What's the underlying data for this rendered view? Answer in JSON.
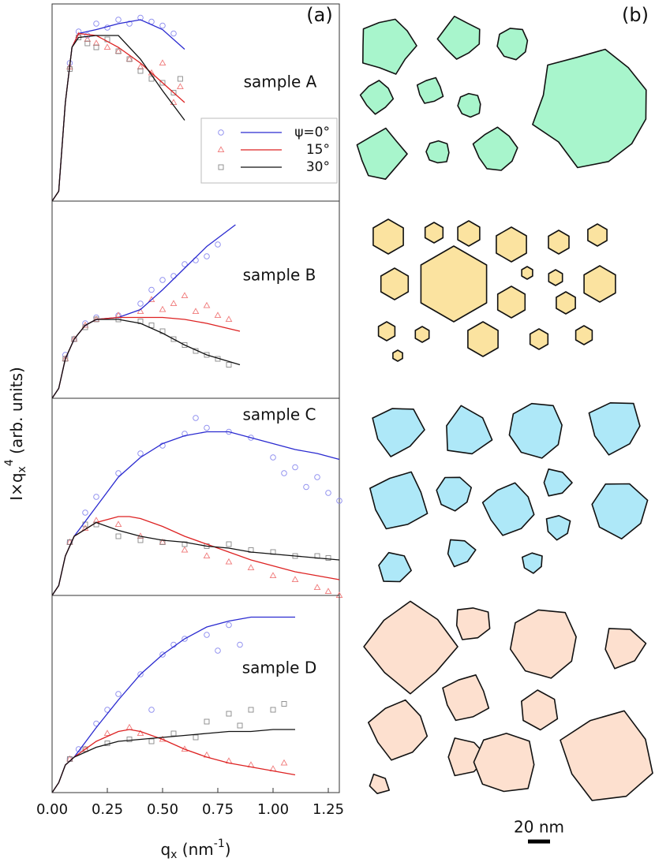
{
  "figure": {
    "panel_a": "(a)",
    "panel_b": "(b)",
    "ylabel": [
      "I×q",
      "x",
      "4",
      " (arb. units)"
    ],
    "xlabel": [
      "q",
      "x",
      " (nm",
      "-1",
      ")"
    ],
    "scalebar": "20 nm"
  },
  "chart_data": [
    {
      "type": "scatter",
      "label": "sample A",
      "xlim": [
        0,
        1.3
      ],
      "ylim": [
        0,
        1
      ],
      "legend": true,
      "series": [
        {
          "name": "ψ=0°",
          "color": "#2a2ad0",
          "marker": "circle",
          "x": [
            0.08,
            0.12,
            0.16,
            0.2,
            0.25,
            0.3,
            0.35,
            0.4,
            0.45,
            0.5,
            0.55
          ],
          "values": [
            0.7,
            0.86,
            0.84,
            0.9,
            0.88,
            0.92,
            0.9,
            0.93,
            0.91,
            0.89,
            0.85
          ],
          "fit_x": [
            0,
            0.03,
            0.06,
            0.09,
            0.12,
            0.2,
            0.3,
            0.4,
            0.5,
            0.6
          ],
          "fit_values": [
            0,
            0.05,
            0.5,
            0.78,
            0.85,
            0.87,
            0.9,
            0.92,
            0.87,
            0.77
          ]
        },
        {
          "name": "15°",
          "color": "#dd2222",
          "marker": "triangle",
          "x": [
            0.08,
            0.12,
            0.16,
            0.2,
            0.25,
            0.3,
            0.35,
            0.4,
            0.45,
            0.5,
            0.55,
            0.58
          ],
          "values": [
            0.68,
            0.84,
            0.82,
            0.8,
            0.78,
            0.76,
            0.72,
            0.68,
            0.65,
            0.7,
            0.5,
            0.58
          ],
          "fit_x": [
            0,
            0.03,
            0.06,
            0.09,
            0.12,
            0.2,
            0.3,
            0.4,
            0.5,
            0.6
          ],
          "fit_values": [
            0,
            0.05,
            0.5,
            0.78,
            0.85,
            0.84,
            0.78,
            0.7,
            0.6,
            0.5
          ]
        },
        {
          "name": "30°",
          "color": "#111111",
          "marker": "square",
          "x": [
            0.08,
            0.12,
            0.16,
            0.2,
            0.25,
            0.3,
            0.35,
            0.4,
            0.45,
            0.5,
            0.55,
            0.58
          ],
          "values": [
            0.67,
            0.83,
            0.8,
            0.78,
            0.82,
            0.76,
            0.72,
            0.66,
            0.62,
            0.6,
            0.55,
            0.62
          ],
          "fit_x": [
            0,
            0.03,
            0.06,
            0.09,
            0.12,
            0.2,
            0.3,
            0.4,
            0.5,
            0.6
          ],
          "fit_values": [
            0,
            0.05,
            0.5,
            0.78,
            0.83,
            0.84,
            0.84,
            0.72,
            0.56,
            0.41
          ]
        }
      ]
    },
    {
      "type": "scatter",
      "label": "sample B",
      "xlim": [
        0,
        1.3
      ],
      "ylim": [
        0,
        1
      ],
      "series": [
        {
          "color": "#2a2ad0",
          "marker": "circle",
          "x": [
            0.06,
            0.1,
            0.15,
            0.2,
            0.3,
            0.4,
            0.45,
            0.5,
            0.55,
            0.6,
            0.65,
            0.7,
            0.75
          ],
          "values": [
            0.22,
            0.3,
            0.38,
            0.41,
            0.42,
            0.48,
            0.55,
            0.6,
            0.62,
            0.68,
            0.7,
            0.72,
            0.78
          ],
          "fit_x": [
            0,
            0.03,
            0.06,
            0.1,
            0.15,
            0.2,
            0.3,
            0.4,
            0.5,
            0.6,
            0.7,
            0.83
          ],
          "fit_values": [
            0,
            0.05,
            0.2,
            0.3,
            0.37,
            0.4,
            0.41,
            0.45,
            0.55,
            0.66,
            0.77,
            0.88
          ]
        },
        {
          "color": "#dd2222",
          "marker": "triangle",
          "x": [
            0.06,
            0.1,
            0.15,
            0.2,
            0.3,
            0.4,
            0.45,
            0.5,
            0.55,
            0.6,
            0.65,
            0.7,
            0.75,
            0.8
          ],
          "values": [
            0.2,
            0.3,
            0.37,
            0.4,
            0.42,
            0.44,
            0.5,
            0.45,
            0.48,
            0.52,
            0.44,
            0.47,
            0.42,
            0.4
          ],
          "fit_x": [
            0,
            0.03,
            0.06,
            0.1,
            0.15,
            0.2,
            0.3,
            0.4,
            0.5,
            0.6,
            0.7,
            0.85
          ],
          "fit_values": [
            0,
            0.05,
            0.2,
            0.3,
            0.37,
            0.4,
            0.41,
            0.41,
            0.41,
            0.4,
            0.38,
            0.34
          ]
        },
        {
          "color": "#111111",
          "marker": "square",
          "x": [
            0.06,
            0.1,
            0.15,
            0.2,
            0.3,
            0.4,
            0.45,
            0.5,
            0.55,
            0.6,
            0.65,
            0.7,
            0.75,
            0.8
          ],
          "values": [
            0.2,
            0.3,
            0.36,
            0.4,
            0.4,
            0.39,
            0.37,
            0.34,
            0.3,
            0.27,
            0.24,
            0.22,
            0.2,
            0.17
          ],
          "fit_x": [
            0,
            0.03,
            0.06,
            0.1,
            0.15,
            0.2,
            0.3,
            0.4,
            0.5,
            0.6,
            0.7,
            0.85
          ],
          "fit_values": [
            0,
            0.05,
            0.2,
            0.3,
            0.37,
            0.4,
            0.4,
            0.38,
            0.33,
            0.27,
            0.22,
            0.17
          ]
        }
      ]
    },
    {
      "type": "scatter",
      "label": "sample C",
      "xlim": [
        0,
        1.3
      ],
      "ylim": [
        0,
        1
      ],
      "series": [
        {
          "color": "#2a2ad0",
          "marker": "circle",
          "x": [
            0.08,
            0.15,
            0.2,
            0.3,
            0.4,
            0.5,
            0.6,
            0.65,
            0.7,
            0.8,
            0.9,
            1.0,
            1.05,
            1.1,
            1.15,
            1.2,
            1.25,
            1.3
          ],
          "values": [
            0.27,
            0.42,
            0.5,
            0.62,
            0.72,
            0.76,
            0.82,
            0.9,
            0.85,
            0.83,
            0.8,
            0.7,
            0.62,
            0.65,
            0.55,
            0.6,
            0.52,
            0.48
          ],
          "fit_x": [
            0,
            0.03,
            0.06,
            0.1,
            0.2,
            0.3,
            0.4,
            0.5,
            0.6,
            0.7,
            0.8,
            0.9,
            1.0,
            1.1,
            1.2,
            1.3
          ],
          "fit_values": [
            0,
            0.05,
            0.2,
            0.3,
            0.45,
            0.6,
            0.7,
            0.77,
            0.81,
            0.83,
            0.83,
            0.8,
            0.77,
            0.74,
            0.72,
            0.69
          ]
        },
        {
          "color": "#dd2222",
          "marker": "triangle",
          "x": [
            0.08,
            0.15,
            0.2,
            0.3,
            0.4,
            0.5,
            0.6,
            0.7,
            0.8,
            0.9,
            1.0,
            1.1,
            1.2,
            1.25,
            1.3
          ],
          "values": [
            0.27,
            0.34,
            0.38,
            0.36,
            0.3,
            0.27,
            0.23,
            0.2,
            0.17,
            0.14,
            0.1,
            0.08,
            0.04,
            0.02,
            0.0
          ],
          "fit_x": [
            0,
            0.03,
            0.06,
            0.1,
            0.2,
            0.3,
            0.35,
            0.4,
            0.5,
            0.6,
            0.7,
            0.8,
            0.9,
            1.0,
            1.1,
            1.2,
            1.3
          ],
          "fit_values": [
            0,
            0.05,
            0.2,
            0.3,
            0.37,
            0.4,
            0.4,
            0.39,
            0.35,
            0.3,
            0.26,
            0.22,
            0.18,
            0.15,
            0.12,
            0.1,
            0.08
          ]
        },
        {
          "color": "#111111",
          "marker": "square",
          "x": [
            0.08,
            0.15,
            0.2,
            0.3,
            0.4,
            0.5,
            0.6,
            0.7,
            0.8,
            0.9,
            1.0,
            1.1,
            1.2,
            1.25
          ],
          "values": [
            0.27,
            0.36,
            0.36,
            0.3,
            0.28,
            0.27,
            0.26,
            0.25,
            0.26,
            0.23,
            0.22,
            0.2,
            0.2,
            0.19
          ],
          "fit_x": [
            0,
            0.03,
            0.06,
            0.1,
            0.2,
            0.3,
            0.4,
            0.5,
            0.6,
            0.7,
            0.8,
            0.9,
            1.0,
            1.1,
            1.2,
            1.3
          ],
          "fit_values": [
            0,
            0.05,
            0.2,
            0.3,
            0.37,
            0.33,
            0.3,
            0.28,
            0.27,
            0.25,
            0.24,
            0.22,
            0.21,
            0.2,
            0.19,
            0.18
          ]
        }
      ]
    },
    {
      "type": "scatter",
      "label": "sample D",
      "xlim": [
        0,
        1.3
      ],
      "ylim": [
        0,
        1
      ],
      "xticks": [
        {
          "value": 0,
          "label": "0.00"
        },
        {
          "value": 0.25,
          "label": "0.25"
        },
        {
          "value": 0.5,
          "label": "0.50"
        },
        {
          "value": 0.75,
          "label": "0.75"
        },
        {
          "value": 1,
          "label": "1.00"
        },
        {
          "value": 1.25,
          "label": "1.25"
        }
      ],
      "series": [
        {
          "color": "#2a2ad0",
          "marker": "circle",
          "x": [
            0.08,
            0.12,
            0.2,
            0.25,
            0.3,
            0.4,
            0.45,
            0.5,
            0.55,
            0.6,
            0.7,
            0.75,
            0.8,
            0.85
          ],
          "values": [
            0.17,
            0.22,
            0.35,
            0.42,
            0.5,
            0.6,
            0.42,
            0.7,
            0.75,
            0.78,
            0.8,
            0.72,
            0.85,
            0.75
          ],
          "fit_x": [
            0,
            0.03,
            0.06,
            0.1,
            0.2,
            0.3,
            0.4,
            0.5,
            0.6,
            0.7,
            0.8,
            0.9,
            1.0,
            1.1
          ],
          "fit_values": [
            0,
            0.05,
            0.14,
            0.18,
            0.33,
            0.47,
            0.6,
            0.7,
            0.78,
            0.84,
            0.87,
            0.89,
            0.89,
            0.89
          ]
        },
        {
          "color": "#dd2222",
          "marker": "triangle",
          "x": [
            0.08,
            0.15,
            0.25,
            0.35,
            0.4,
            0.5,
            0.6,
            0.7,
            0.8,
            0.9,
            1.0,
            1.05
          ],
          "values": [
            0.17,
            0.22,
            0.3,
            0.33,
            0.3,
            0.27,
            0.22,
            0.19,
            0.16,
            0.14,
            0.12,
            0.15
          ],
          "fit_x": [
            0,
            0.03,
            0.06,
            0.1,
            0.2,
            0.3,
            0.35,
            0.4,
            0.5,
            0.6,
            0.7,
            0.8,
            0.9,
            1.0,
            1.1
          ],
          "fit_values": [
            0,
            0.05,
            0.14,
            0.18,
            0.26,
            0.31,
            0.32,
            0.31,
            0.27,
            0.22,
            0.18,
            0.15,
            0.13,
            0.11,
            0.09
          ]
        },
        {
          "color": "#111111",
          "marker": "square",
          "x": [
            0.08,
            0.15,
            0.25,
            0.35,
            0.45,
            0.55,
            0.65,
            0.7,
            0.8,
            0.85,
            0.9,
            1.0,
            1.05
          ],
          "values": [
            0.17,
            0.22,
            0.25,
            0.27,
            0.26,
            0.3,
            0.28,
            0.36,
            0.4,
            0.34,
            0.42,
            0.42,
            0.45
          ],
          "fit_x": [
            0,
            0.03,
            0.06,
            0.1,
            0.2,
            0.3,
            0.4,
            0.5,
            0.6,
            0.7,
            0.8,
            0.9,
            1.0,
            1.1
          ],
          "fit_values": [
            0,
            0.05,
            0.14,
            0.18,
            0.23,
            0.26,
            0.27,
            0.28,
            0.29,
            0.3,
            0.31,
            0.31,
            0.32,
            0.32
          ]
        }
      ]
    }
  ]
}
